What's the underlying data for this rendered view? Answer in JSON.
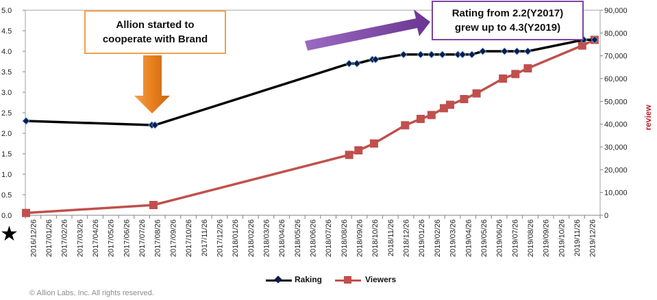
{
  "chart_data": {
    "type": "line",
    "categories": [
      "2016/12/26",
      "2017/01/26",
      "2017/02/26",
      "2017/03/26",
      "2017/04/26",
      "2017/05/26",
      "2017/06/26",
      "2017/07/26",
      "2017/08/26",
      "2017/09/26",
      "2017/10/26",
      "2017/11/26",
      "2017/12/26",
      "2018/01/26",
      "2018/02/26",
      "2018/03/26",
      "2018/04/26",
      "2018/05/26",
      "2018/06/26",
      "2018/07/26",
      "2018/08/26",
      "2018/09/26",
      "2018/10/26",
      "2018/11/26",
      "2018/12/26",
      "2019/01/26",
      "2019/02/26",
      "2019/03/26",
      "2019/04/26",
      "2019/05/26",
      "2019/06/26",
      "2019/07/26",
      "2019/08/26",
      "2019/09/26",
      "2019/10/26",
      "2019/11/26",
      "2019/12/26"
    ],
    "y_left": {
      "ticks": [
        "0.0",
        "0.5",
        "1.0",
        "1.5",
        "2.0",
        "2.5",
        "3.0",
        "3.5",
        "4.0",
        "4.5",
        "5.0"
      ],
      "ylim": [
        0,
        5
      ]
    },
    "y_right": {
      "ticks": [
        "0",
        "10,000",
        "20,000",
        "30,000",
        "40,000",
        "50,000",
        "60,000",
        "70,000",
        "80,000",
        "90,000"
      ],
      "ylim": [
        0,
        90000
      ],
      "label": "review",
      "label_color": "#c0202a"
    },
    "series": [
      {
        "name": "Raking",
        "axis": "left",
        "color": "#000000",
        "marker": "diamond",
        "marker_color": "#0d1b4a",
        "points": [
          [
            0,
            2.3
          ],
          [
            8.1,
            2.2
          ],
          [
            8.3,
            2.2
          ],
          [
            20.8,
            3.7
          ],
          [
            21.3,
            3.7
          ],
          [
            22.3,
            3.8
          ],
          [
            22.5,
            3.8
          ],
          [
            24.3,
            3.92
          ],
          [
            25.4,
            3.92
          ],
          [
            26.1,
            3.92
          ],
          [
            26.8,
            3.92
          ],
          [
            27.8,
            3.92
          ],
          [
            28.1,
            3.92
          ],
          [
            28.7,
            3.92
          ],
          [
            29.4,
            4.0
          ],
          [
            30.8,
            4.0
          ],
          [
            31.6,
            4.0
          ],
          [
            32.3,
            4.0
          ],
          [
            35.9,
            4.28
          ],
          [
            36.6,
            4.28
          ]
        ]
      },
      {
        "name": "Viewers",
        "axis": "right",
        "color": "#c0504d",
        "marker": "square",
        "marker_color": "#c0504d",
        "points": [
          [
            0,
            1000
          ],
          [
            8.2,
            4500
          ],
          [
            20.8,
            26500
          ],
          [
            21.4,
            28500
          ],
          [
            22.4,
            31500
          ],
          [
            24.4,
            39500
          ],
          [
            25.4,
            42300
          ],
          [
            26.1,
            44000
          ],
          [
            26.9,
            47000
          ],
          [
            27.3,
            48500
          ],
          [
            28.2,
            51000
          ],
          [
            29.0,
            53500
          ],
          [
            30.7,
            60000
          ],
          [
            31.5,
            62000
          ],
          [
            32.3,
            64500
          ],
          [
            35.8,
            74500
          ],
          [
            36.6,
            77000
          ]
        ]
      }
    ]
  },
  "annotations": {
    "left_box": {
      "line1": "Allion started to",
      "line2": "cooperate with Brand"
    },
    "right_box": {
      "line1": "Rating from 2.2(Y2017)",
      "line2": "grew up to 4.3(Y2019)"
    },
    "left_arrow_color": "#e8801e",
    "right_arrow_color": "#7a45a0"
  },
  "legend": {
    "raking": "Raking",
    "viewers": "Viewers"
  },
  "footer": {
    "copyright": "© Allion Labs, Inc. All rights reserved.",
    "star": "★"
  }
}
